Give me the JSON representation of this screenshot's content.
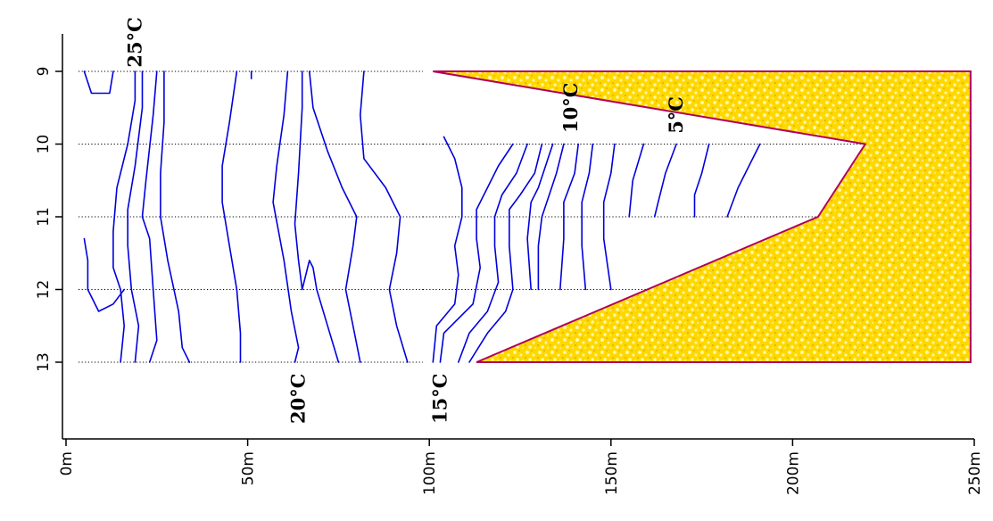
{
  "chart_data": {
    "type": "line",
    "title": "",
    "xlabel": "",
    "ylabel": "",
    "x_unit": "m",
    "xlim": [
      0,
      250
    ],
    "ylim": [
      9,
      14
    ],
    "x_ticks": [
      0,
      50,
      100,
      150,
      200,
      250
    ],
    "x_tick_labels": [
      "0m",
      "50m",
      "100m",
      "150m",
      "200m",
      "250m"
    ],
    "y_ticks": [
      9,
      10,
      11,
      12,
      13
    ],
    "y_tick_labels": [
      "9",
      "10",
      "11",
      "12",
      "13"
    ],
    "grid": "dotted horizontal lines at y = 9, 10, 11, 12, 13",
    "colors": {
      "isotherm": "#0000dd",
      "fill": "#ffd800",
      "fill_speckle": "#fff6a8",
      "fill_border": "#b0005a"
    },
    "shaded_region": [
      [
        101,
        9
      ],
      [
        249,
        9
      ],
      [
        249,
        13
      ],
      [
        113,
        13
      ],
      [
        207,
        11
      ],
      [
        220,
        10
      ]
    ],
    "isotherm_labels": [
      {
        "text": "25°C",
        "x": 19,
        "y": 8.6
      },
      {
        "text": "20°C",
        "x": 64,
        "y": 13.5
      },
      {
        "text": "15°C",
        "x": 103,
        "y": 13.5
      },
      {
        "text": "10°C",
        "x": 139,
        "y": 9.5
      },
      {
        "text": "5°C",
        "x": 168,
        "y": 9.6
      }
    ],
    "series": [
      {
        "values": [
          [
            5,
            9
          ],
          [
            7,
            9.3
          ],
          [
            12,
            9.3
          ],
          [
            13,
            9
          ]
        ]
      },
      {
        "values": [
          [
            5,
            11.3
          ],
          [
            6,
            11.6
          ],
          [
            6,
            12
          ],
          [
            9,
            12.3
          ],
          [
            13,
            12.2
          ],
          [
            16,
            12
          ]
        ]
      },
      {
        "values": [
          [
            19,
            9
          ],
          [
            19,
            9.4
          ],
          [
            17,
            10
          ],
          [
            14,
            10.6
          ],
          [
            13,
            11.2
          ],
          [
            13,
            11.7
          ],
          [
            15,
            12
          ],
          [
            16,
            12.5
          ],
          [
            15,
            13
          ]
        ]
      },
      {
        "values": [
          [
            21,
            9
          ],
          [
            21,
            9.5
          ],
          [
            19,
            10.3
          ],
          [
            17,
            10.9
          ],
          [
            17,
            11.4
          ],
          [
            18,
            12
          ],
          [
            20,
            12.5
          ],
          [
            19,
            13
          ]
        ]
      },
      {
        "values": [
          [
            25,
            9
          ],
          [
            24,
            9.6
          ],
          [
            22,
            10.5
          ],
          [
            21,
            11
          ],
          [
            23,
            11.3
          ],
          [
            24,
            12
          ],
          [
            25,
            12.7
          ],
          [
            23,
            13
          ]
        ]
      },
      {
        "values": [
          [
            27,
            9
          ],
          [
            27,
            9.7
          ],
          [
            26,
            10.4
          ],
          [
            26,
            11
          ],
          [
            28,
            11.6
          ],
          [
            31,
            12.3
          ],
          [
            32,
            12.8
          ],
          [
            34,
            13
          ]
        ]
      },
      {
        "values": [
          [
            47,
            9
          ],
          [
            45,
            9.7
          ],
          [
            43,
            10.3
          ],
          [
            43,
            10.8
          ],
          [
            45,
            11.4
          ],
          [
            47,
            12
          ],
          [
            48,
            12.6
          ],
          [
            48,
            13
          ]
        ]
      },
      {
        "values": [
          [
            51,
            9
          ],
          [
            51,
            9.1
          ]
        ]
      },
      {
        "values": [
          [
            61,
            9
          ],
          [
            60,
            9.6
          ],
          [
            58,
            10.3
          ],
          [
            57,
            10.8
          ],
          [
            60,
            11.6
          ],
          [
            62,
            12.3
          ],
          [
            64,
            12.8
          ],
          [
            63,
            13
          ]
        ]
      },
      {
        "values": [
          [
            65,
            9
          ],
          [
            65,
            9.5
          ],
          [
            64,
            10.4
          ],
          [
            63,
            11.1
          ],
          [
            64,
            11.6
          ],
          [
            65,
            12
          ],
          [
            67,
            11.6
          ],
          [
            68,
            11.7
          ],
          [
            69,
            12
          ],
          [
            72,
            12.5
          ],
          [
            75,
            13
          ]
        ]
      },
      {
        "values": [
          [
            67,
            9
          ],
          [
            68,
            9.5
          ],
          [
            72,
            10.1
          ],
          [
            76,
            10.6
          ],
          [
            80,
            11
          ],
          [
            79,
            11.4
          ],
          [
            77,
            12
          ],
          [
            79,
            12.5
          ],
          [
            81,
            13
          ]
        ]
      },
      {
        "values": [
          [
            82,
            9
          ],
          [
            81,
            9.6
          ],
          [
            82,
            10.2
          ],
          [
            88,
            10.6
          ],
          [
            92,
            11
          ],
          [
            91,
            11.5
          ],
          [
            89,
            12
          ],
          [
            91,
            12.5
          ],
          [
            94,
            13
          ]
        ]
      },
      {
        "values": [
          [
            104,
            9.9
          ],
          [
            107,
            10.2
          ],
          [
            109,
            10.6
          ],
          [
            109,
            11
          ],
          [
            107,
            11.4
          ],
          [
            108,
            11.8
          ],
          [
            107,
            12.2
          ],
          [
            102,
            12.5
          ],
          [
            101,
            13
          ]
        ]
      },
      {
        "values": [
          [
            123,
            10
          ],
          [
            119,
            10.3
          ],
          [
            116,
            10.6
          ],
          [
            113,
            10.9
          ],
          [
            113,
            11.3
          ],
          [
            114,
            11.7
          ],
          [
            112,
            12.2
          ],
          [
            104,
            12.6
          ],
          [
            103,
            13
          ]
        ]
      },
      {
        "values": [
          [
            127,
            10
          ],
          [
            124,
            10.4
          ],
          [
            120,
            10.7
          ],
          [
            118,
            11
          ],
          [
            118,
            11.4
          ],
          [
            119,
            11.9
          ],
          [
            116,
            12.3
          ],
          [
            111,
            12.6
          ],
          [
            108,
            13
          ]
        ]
      },
      {
        "values": [
          [
            131,
            10
          ],
          [
            129,
            10.4
          ],
          [
            125,
            10.7
          ],
          [
            122,
            10.9
          ],
          [
            122,
            11.4
          ],
          [
            123,
            12
          ],
          [
            121,
            12.3
          ],
          [
            116,
            12.6
          ],
          [
            111,
            13
          ]
        ]
      },
      {
        "values": [
          [
            134,
            10
          ],
          [
            132,
            10.3
          ],
          [
            130,
            10.6
          ],
          [
            128,
            10.8
          ],
          [
            127,
            11.3
          ],
          [
            128,
            12
          ]
        ]
      },
      {
        "values": [
          [
            137,
            10
          ],
          [
            135,
            10.4
          ],
          [
            133,
            10.7
          ],
          [
            131,
            11
          ],
          [
            130,
            11.4
          ],
          [
            130,
            12
          ]
        ]
      },
      {
        "values": [
          [
            141,
            10
          ],
          [
            140,
            10.4
          ],
          [
            137,
            10.8
          ],
          [
            137,
            11.3
          ],
          [
            136,
            12
          ]
        ]
      },
      {
        "values": [
          [
            145,
            10
          ],
          [
            144,
            10.4
          ],
          [
            142,
            10.8
          ],
          [
            142,
            11.4
          ],
          [
            143,
            12
          ]
        ]
      },
      {
        "values": [
          [
            151,
            10
          ],
          [
            150,
            10.4
          ],
          [
            148,
            10.8
          ],
          [
            148,
            11.3
          ],
          [
            150,
            12
          ]
        ]
      },
      {
        "values": [
          [
            159,
            10
          ],
          [
            156,
            10.5
          ],
          [
            155,
            11
          ]
        ]
      },
      {
        "values": [
          [
            168,
            10
          ],
          [
            165,
            10.4
          ],
          [
            163,
            10.8
          ],
          [
            162,
            11
          ]
        ]
      },
      {
        "values": [
          [
            177,
            10
          ],
          [
            175,
            10.4
          ],
          [
            173,
            10.7
          ],
          [
            173,
            11
          ]
        ]
      },
      {
        "values": [
          [
            191,
            10
          ],
          [
            188,
            10.3
          ],
          [
            185,
            10.6
          ],
          [
            182,
            11
          ]
        ]
      }
    ]
  }
}
